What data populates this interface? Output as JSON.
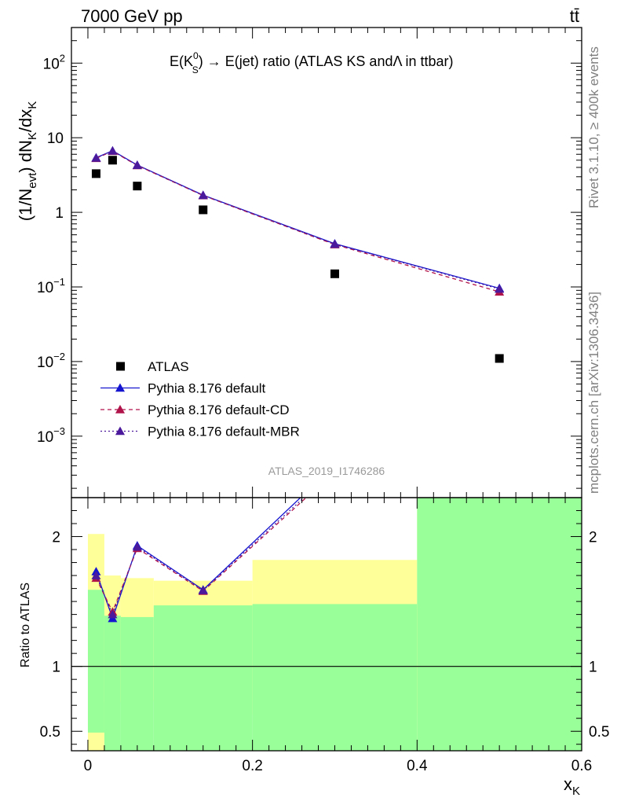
{
  "header": {
    "energy_label": "7000 GeV pp",
    "process_label": "tt̄"
  },
  "side_labels": {
    "rivet": "Rivet 3.1.10, ≥ 400k events",
    "source": "mcplots.cern.ch [arXiv:1306.3436]"
  },
  "watermark": "ATLAS_2019_I1746286",
  "chart_data": [
    {
      "type": "scatter",
      "panel": "main",
      "title_parts": {
        "a": "E(K",
        "sup": "0",
        "sub": "S",
        "b": ") → E(jet) ratio (ATLAS KS and",
        "lambda": "Λ",
        "c": " in ttbar)"
      },
      "ylabel": "(1/N_evt) dN_K/dx_K",
      "yscale": "log",
      "ylim": [
        0.00015,
        300
      ],
      "xlim": [
        -0.02,
        0.6
      ],
      "y_ticks": [
        {
          "v": 100,
          "label": "10",
          "exp": "2"
        },
        {
          "v": 10,
          "label": "10",
          "exp": ""
        },
        {
          "v": 1,
          "label": "1",
          "exp": ""
        },
        {
          "v": 0.1,
          "label": "10",
          "exp": "−1"
        },
        {
          "v": 0.01,
          "label": "10",
          "exp": "−2"
        },
        {
          "v": 0.001,
          "label": "10",
          "exp": "−3"
        }
      ],
      "legend_position": "bottom-left",
      "series": [
        {
          "name": "ATLAS",
          "style": "data",
          "color": "#000000",
          "x": [
            0.01,
            0.03,
            0.06,
            0.14,
            0.3,
            0.5
          ],
          "y": [
            3.3,
            5.0,
            2.25,
            1.08,
            0.15,
            0.011
          ]
        },
        {
          "name": "Pythia 8.176 default",
          "style": "solid",
          "color": "#1515d0",
          "x": [
            0.01,
            0.03,
            0.06,
            0.14,
            0.3,
            0.5
          ],
          "y": [
            5.4,
            6.7,
            4.3,
            1.7,
            0.38,
            0.096
          ]
        },
        {
          "name": "Pythia 8.176 default-CD",
          "style": "dashed",
          "color": "#b0134a",
          "x": [
            0.01,
            0.03,
            0.06,
            0.14,
            0.3,
            0.5
          ],
          "y": [
            5.3,
            6.6,
            4.25,
            1.68,
            0.37,
            0.086
          ]
        },
        {
          "name": "Pythia 8.176 default-MBR",
          "style": "dotted",
          "color": "#4b1a9c",
          "x": [
            0.01,
            0.03,
            0.06,
            0.14,
            0.3,
            0.5
          ],
          "y": [
            5.35,
            6.65,
            4.28,
            1.69,
            0.375,
            0.094
          ]
        }
      ]
    },
    {
      "type": "line",
      "panel": "ratio",
      "ylabel": "Ratio to ATLAS",
      "xlabel": "x_K",
      "ylim": [
        0.35,
        2.3
      ],
      "xlim": [
        -0.02,
        0.6
      ],
      "x_ticks": [
        0,
        0.2,
        0.4,
        0.6
      ],
      "y_ticks": [
        0.5,
        1,
        2
      ],
      "bands": {
        "edges": [
          0,
          0.02,
          0.04,
          0.08,
          0.2,
          0.4,
          0.6
        ],
        "yellow_lo": [
          0.35,
          0.72,
          0.73,
          0.74,
          0.63,
          0.35
        ],
        "yellow_hi": [
          2.02,
          1.7,
          1.68,
          1.66,
          1.82,
          2.3
        ],
        "green_lo": [
          0.49,
          0.35,
          0.35,
          0.35,
          0.35,
          0.35
        ],
        "green_hi": [
          1.59,
          1.39,
          1.38,
          1.47,
          1.48,
          2.3
        ]
      },
      "series": [
        {
          "name": "Pythia 8.176 default",
          "color": "#1515d0",
          "style": "solid",
          "x": [
            0.01,
            0.03,
            0.06,
            0.14,
            0.3
          ],
          "y": [
            1.73,
            1.37,
            1.93,
            1.59,
            2.55
          ]
        },
        {
          "name": "Pythia 8.176 default-CD",
          "color": "#b0134a",
          "style": "dashed",
          "x": [
            0.01,
            0.03,
            0.06,
            0.14,
            0.3
          ],
          "y": [
            1.68,
            1.42,
            1.91,
            1.58,
            2.5
          ]
        },
        {
          "name": "Pythia 8.176 default-MBR",
          "color": "#4b1a9c",
          "style": "dotted",
          "x": [
            0.01,
            0.03,
            0.06,
            0.14,
            0.3
          ],
          "y": [
            1.7,
            1.4,
            1.92,
            1.585,
            2.52
          ]
        }
      ]
    }
  ]
}
